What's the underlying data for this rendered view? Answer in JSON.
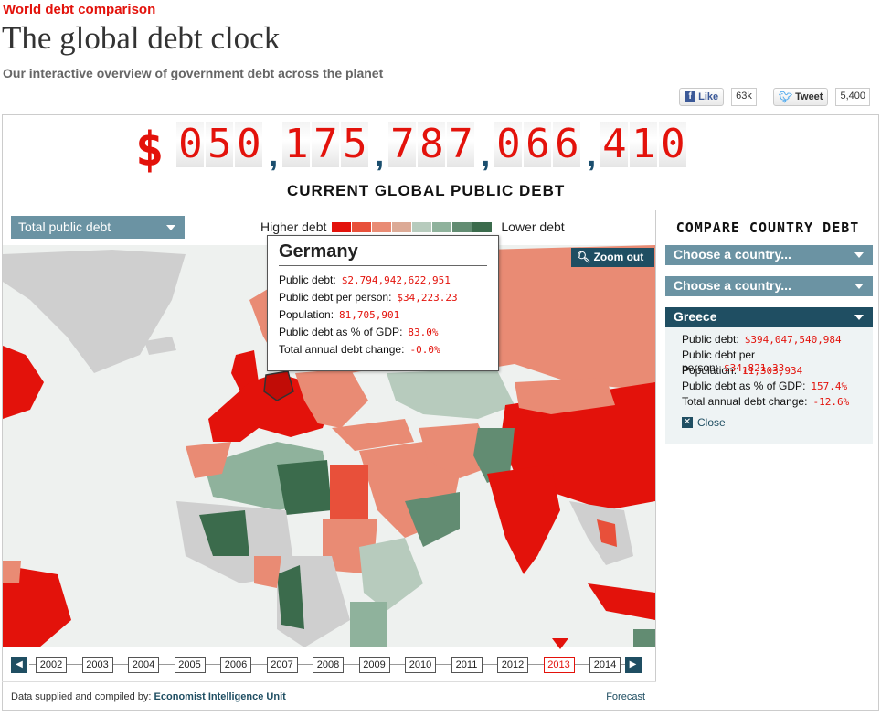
{
  "header": {
    "kicker": "World debt comparison",
    "title": "The global debt clock",
    "subtitle": "Our interactive overview of government debt across the planet"
  },
  "social": {
    "like_label": "Like",
    "like_count": "63k",
    "tweet_label": "Tweet",
    "tweet_count": "5,400"
  },
  "clock": {
    "currency": "$",
    "digits": [
      "0",
      "5",
      "0",
      ",",
      "1",
      "7",
      "5",
      ",",
      "7",
      "8",
      "7",
      ",",
      "0",
      "6",
      "6",
      ",",
      "4",
      "1",
      "0"
    ],
    "label": "CURRENT GLOBAL PUBLIC DEBT"
  },
  "controls": {
    "metric_dropdown": "Total public debt",
    "legend_high": "Higher debt",
    "legend_low": "Lower debt",
    "legend_colors": [
      "#e3120b",
      "#e8503a",
      "#e98b74",
      "#dcaa96",
      "#b7cbbd",
      "#8fb29c",
      "#628c72",
      "#3b6b4c"
    ],
    "zoom_out": "Zoom out"
  },
  "tooltip": {
    "country": "Germany",
    "rows": [
      {
        "label": "Public debt:",
        "value": "$2,794,942,622,951"
      },
      {
        "label": "Public debt per person:",
        "value": "$34,223.23"
      },
      {
        "label": "Population:",
        "value": "81,705,901"
      },
      {
        "label": "Public debt as % of GDP:",
        "value": "83.0%"
      },
      {
        "label": "Total annual debt change:",
        "value": "-0.0%"
      }
    ]
  },
  "timeline": {
    "years": [
      "2002",
      "2003",
      "2004",
      "2005",
      "2006",
      "2007",
      "2008",
      "2009",
      "2010",
      "2011",
      "2012",
      "2013",
      "2014"
    ],
    "selected": "2013"
  },
  "footer": {
    "source_prefix": "Data supplied and compiled by:",
    "source_name": "Economist Intelligence Unit",
    "forecast": "Forecast"
  },
  "compare": {
    "title": "COMPARE COUNTRY DEBT",
    "choose1": "Choose a country...",
    "choose2": "Choose a country...",
    "selected": "Greece",
    "rows": [
      {
        "label": "Public debt:",
        "value": "$394,047,540,984"
      },
      {
        "label": "Public debt per person:",
        "value": "$34,821.33"
      },
      {
        "label": "Population:",
        "value": "11,303,934"
      },
      {
        "label": "Public debt as % of GDP:",
        "value": "157.4%"
      },
      {
        "label": "Total annual debt change:",
        "value": "-12.6%"
      }
    ],
    "close": "Close"
  }
}
